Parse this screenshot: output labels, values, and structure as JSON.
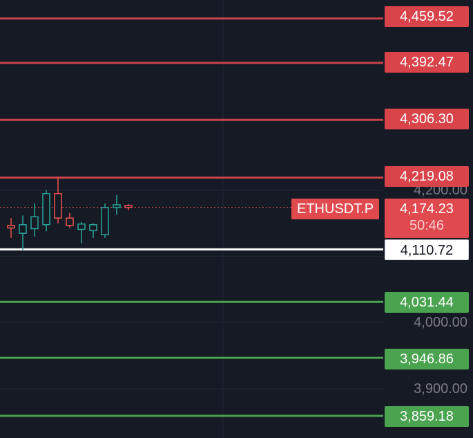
{
  "symbol": "ETHUSDT.P",
  "current": {
    "price": "4,174.23",
    "countdown": "50:46",
    "value": 4174.23
  },
  "axis": {
    "labels": [
      {
        "text": "4,200.00",
        "value": 4200.0
      },
      {
        "text": "4,000.00",
        "value": 4000.0
      },
      {
        "text": "3,900.00",
        "value": 3900.0
      }
    ]
  },
  "levels": [
    {
      "text": "4,459.52",
      "value": 4459.52,
      "kind": "resistance"
    },
    {
      "text": "4,392.47",
      "value": 4392.47,
      "kind": "resistance"
    },
    {
      "text": "4,306.30",
      "value": 4306.3,
      "kind": "resistance"
    },
    {
      "text": "4,219.08",
      "value": 4219.08,
      "kind": "resistance"
    },
    {
      "text": "4,110.72",
      "value": 4110.72,
      "kind": "pivot"
    },
    {
      "text": "4,031.44",
      "value": 4031.44,
      "kind": "support"
    },
    {
      "text": "3,946.86",
      "value": 3946.86,
      "kind": "support"
    },
    {
      "text": "3,859.18",
      "value": 3859.18,
      "kind": "support"
    }
  ],
  "candles": [
    {
      "o": 4147,
      "h": 4158,
      "l": 4128,
      "c": 4143
    },
    {
      "o": 4135,
      "h": 4162,
      "l": 4110,
      "c": 4148
    },
    {
      "o": 4142,
      "h": 4180,
      "l": 4130,
      "c": 4160
    },
    {
      "o": 4148,
      "h": 4200,
      "l": 4138,
      "c": 4195
    },
    {
      "o": 4195,
      "h": 4219,
      "l": 4150,
      "c": 4158
    },
    {
      "o": 4158,
      "h": 4166,
      "l": 4143,
      "c": 4147
    },
    {
      "o": 4141,
      "h": 4152,
      "l": 4120,
      "c": 4149
    },
    {
      "o": 4139,
      "h": 4150,
      "l": 4128,
      "c": 4148
    },
    {
      "o": 4133,
      "h": 4180,
      "l": 4128,
      "c": 4174
    },
    {
      "o": 4174,
      "h": 4193,
      "l": 4163,
      "c": 4178
    },
    {
      "o": 4177,
      "h": 4179,
      "l": 4170,
      "c": 4174
    }
  ],
  "colors": {
    "background": "#161a25",
    "up": "#26a69a",
    "down": "#ef5350",
    "resistance": "#c9434a",
    "support": "#4aa34f",
    "pivot": "#ffffff",
    "grid": "#232733"
  }
}
